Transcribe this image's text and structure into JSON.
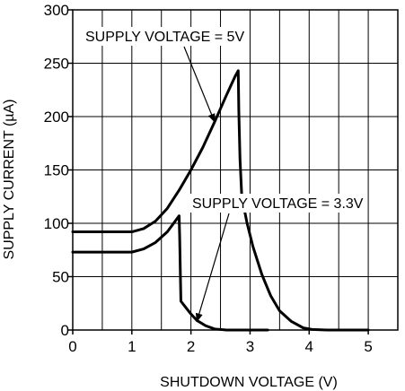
{
  "chart_data": {
    "type": "line",
    "xlabel": "SHUTDOWN VOLTAGE (V)",
    "ylabel": "SUPPLY CURRENT (µA)",
    "xlim": [
      0,
      5.5
    ],
    "ylim": [
      0,
      300
    ],
    "xticks": [
      0,
      1,
      2,
      3,
      4,
      5
    ],
    "yticks": [
      0,
      50,
      100,
      150,
      200,
      250,
      300
    ],
    "grid": true,
    "series": [
      {
        "name": "SUPPLY VOLTAGE = 5V",
        "color": "#000000",
        "points": [
          [
            0,
            92
          ],
          [
            1.0,
            92
          ],
          [
            1.2,
            95
          ],
          [
            1.4,
            102
          ],
          [
            1.6,
            114
          ],
          [
            1.8,
            131
          ],
          [
            2.0,
            150
          ],
          [
            2.2,
            171
          ],
          [
            2.4,
            195
          ],
          [
            2.6,
            220
          ],
          [
            2.75,
            238
          ],
          [
            2.8,
            243
          ],
          [
            2.81,
            205
          ],
          [
            2.83,
            160
          ],
          [
            2.86,
            125
          ],
          [
            2.95,
            100
          ],
          [
            3.05,
            78
          ],
          [
            3.2,
            52
          ],
          [
            3.35,
            32
          ],
          [
            3.5,
            18
          ],
          [
            3.7,
            8
          ],
          [
            3.9,
            2
          ],
          [
            4.05,
            0.5
          ],
          [
            4.3,
            0
          ],
          [
            5.0,
            0
          ]
        ]
      },
      {
        "name": "SUPPLY VOLTAGE = 3.3V",
        "color": "#000000",
        "points": [
          [
            0,
            73
          ],
          [
            1.0,
            73
          ],
          [
            1.2,
            76
          ],
          [
            1.4,
            82
          ],
          [
            1.6,
            92
          ],
          [
            1.72,
            101
          ],
          [
            1.8,
            107
          ],
          [
            1.81,
            85
          ],
          [
            1.82,
            55
          ],
          [
            1.83,
            27
          ],
          [
            1.9,
            22
          ],
          [
            2.0,
            15
          ],
          [
            2.1,
            9
          ],
          [
            2.25,
            4
          ],
          [
            2.4,
            1
          ],
          [
            2.6,
            0
          ],
          [
            3.3,
            0
          ]
        ]
      }
    ],
    "annotations": [
      {
        "text": "SUPPLY VOLTAGE = 5V",
        "target": [
          2.4,
          195
        ]
      },
      {
        "text": "SUPPLY VOLTAGE = 3.3V",
        "target": [
          2.1,
          8
        ]
      }
    ]
  }
}
